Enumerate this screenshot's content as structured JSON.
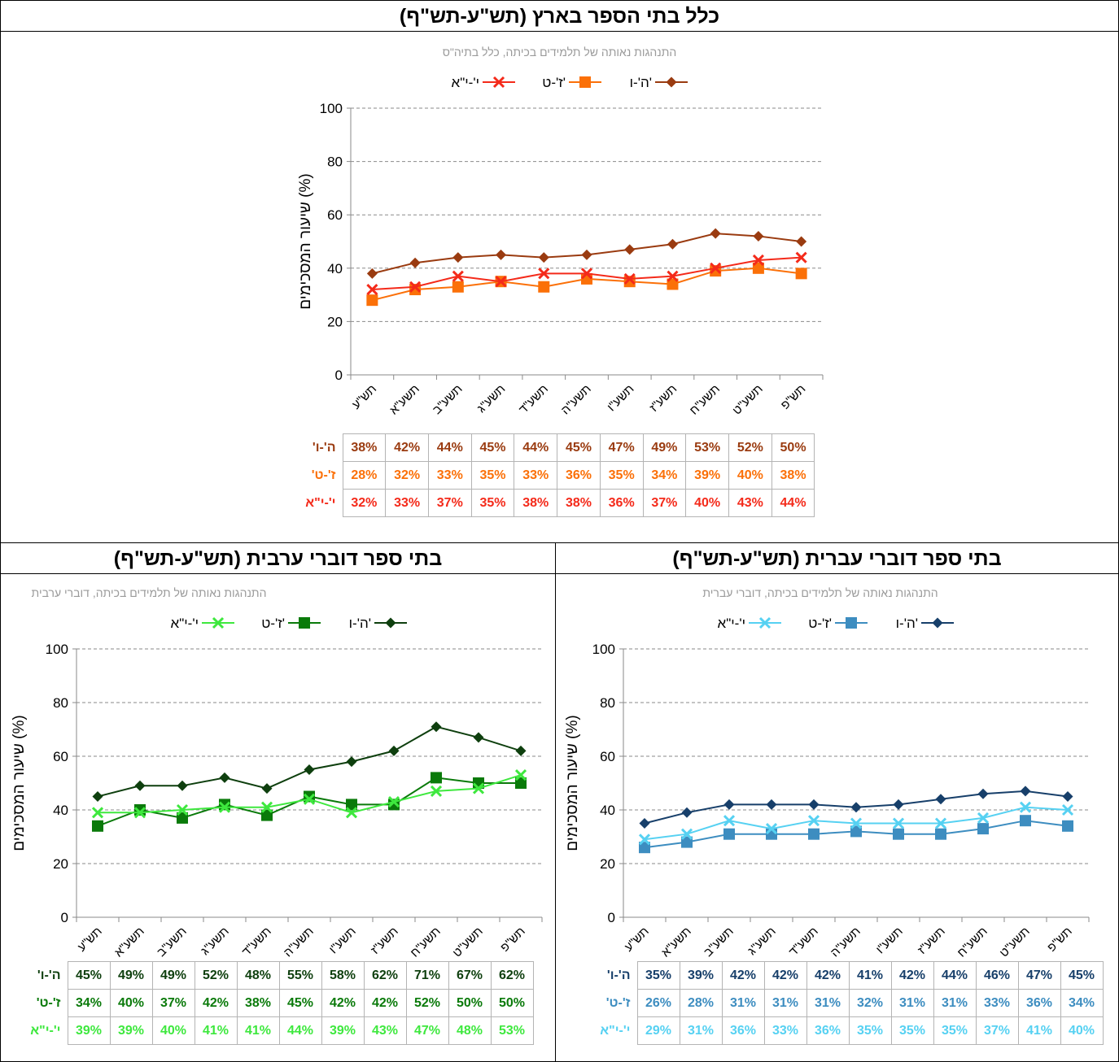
{
  "categories": [
    "תש\"ע",
    "תשע\"א",
    "תשע\"ב",
    "תשע\"ג",
    "תשע\"ד",
    "תשע\"ה",
    "תשע\"ו",
    "תשע\"ז",
    "תשע\"ח",
    "תשע\"ט",
    "תש\"פ"
  ],
  "y_axis": {
    "label": "שיעור המסכימים (%)",
    "ticks": [
      "0",
      "20",
      "40",
      "60",
      "80",
      "100"
    ]
  },
  "chart_data": [
    {
      "type": "line",
      "title": "כלל בתי הספר בארץ (תש\"ע-תש\"ף)",
      "subtitle": "התנהגות נאותה של תלמידים בכיתה, כלל בתיה\"ס",
      "ylabel": "שיעור המסכימים (%)",
      "ylim": [
        0,
        100
      ],
      "grid": true,
      "legend_position": "top",
      "x": [
        "תש\"ע",
        "תשע\"א",
        "תשע\"ב",
        "תשע\"ג",
        "תשע\"ד",
        "תשע\"ה",
        "תשע\"ו",
        "תשע\"ז",
        "תשע\"ח",
        "תשע\"ט",
        "תש\"פ"
      ],
      "series": [
        {
          "name": "ה'-ו'",
          "marker": "diamond",
          "color": "#9a3b10",
          "values": [
            38,
            42,
            44,
            45,
            44,
            45,
            47,
            49,
            53,
            52,
            50
          ],
          "labels": [
            "38%",
            "42%",
            "44%",
            "45%",
            "44%",
            "45%",
            "47%",
            "49%",
            "53%",
            "52%",
            "50%"
          ]
        },
        {
          "name": "ז'-ט'",
          "marker": "square",
          "color": "#fb7008",
          "values": [
            28,
            32,
            33,
            35,
            33,
            36,
            35,
            34,
            39,
            40,
            38
          ],
          "labels": [
            "28%",
            "32%",
            "33%",
            "35%",
            "33%",
            "36%",
            "35%",
            "34%",
            "39%",
            "40%",
            "38%"
          ]
        },
        {
          "name": "י'-י\"א",
          "marker": "x",
          "color": "#f42a1a",
          "values": [
            32,
            33,
            37,
            35,
            38,
            38,
            36,
            37,
            40,
            43,
            44
          ],
          "labels": [
            "32%",
            "33%",
            "37%",
            "35%",
            "38%",
            "38%",
            "36%",
            "37%",
            "40%",
            "43%",
            "44%"
          ]
        }
      ]
    },
    {
      "type": "line",
      "title": "בתי ספר דוברי ערבית (תש\"ע-תש\"ף)",
      "subtitle": "התנהגות נאותה של תלמידים בכיתה, דוברי ערבית",
      "ylabel": "שיעור המסכימים (%)",
      "ylim": [
        0,
        100
      ],
      "grid": true,
      "legend_position": "top",
      "x": [
        "תש\"ע",
        "תשע\"א",
        "תשע\"ב",
        "תשע\"ג",
        "תשע\"ד",
        "תשע\"ה",
        "תשע\"ו",
        "תשע\"ז",
        "תשע\"ח",
        "תשע\"ט",
        "תש\"פ"
      ],
      "series": [
        {
          "name": "ה'-ו'",
          "marker": "diamond",
          "color": "#0e3f0e",
          "values": [
            45,
            49,
            49,
            52,
            48,
            55,
            58,
            62,
            71,
            67,
            62
          ],
          "labels": [
            "45%",
            "49%",
            "49%",
            "52%",
            "48%",
            "55%",
            "58%",
            "62%",
            "71%",
            "67%",
            "62%"
          ]
        },
        {
          "name": "ז'-ט'",
          "marker": "square",
          "color": "#0a7a0a",
          "values": [
            34,
            40,
            37,
            42,
            38,
            45,
            42,
            42,
            52,
            50,
            50
          ],
          "labels": [
            "34%",
            "40%",
            "37%",
            "42%",
            "38%",
            "45%",
            "42%",
            "42%",
            "52%",
            "50%",
            "50%"
          ]
        },
        {
          "name": "י'-י\"א",
          "marker": "x",
          "color": "#3ee83e",
          "values": [
            39,
            39,
            40,
            41,
            41,
            44,
            39,
            43,
            47,
            48,
            53
          ],
          "labels": [
            "39%",
            "39%",
            "40%",
            "41%",
            "41%",
            "44%",
            "39%",
            "43%",
            "47%",
            "48%",
            "53%"
          ]
        }
      ]
    },
    {
      "type": "line",
      "title": "בתי ספר דוברי עברית (תש\"ע-תש\"ף)",
      "subtitle": "התנהגות נאותה של תלמידים בכיתה, דוברי עברית",
      "ylabel": "שיעור המסכימים (%)",
      "ylim": [
        0,
        100
      ],
      "grid": true,
      "legend_position": "top",
      "x": [
        "תש\"ע",
        "תשע\"א",
        "תשע\"ב",
        "תשע\"ג",
        "תשע\"ד",
        "תשע\"ה",
        "תשע\"ו",
        "תשע\"ז",
        "תשע\"ח",
        "תשע\"ט",
        "תש\"פ"
      ],
      "series": [
        {
          "name": "ה'-ו'",
          "marker": "diamond",
          "color": "#173f6a",
          "values": [
            35,
            39,
            42,
            42,
            42,
            41,
            42,
            44,
            46,
            47,
            45
          ],
          "labels": [
            "35%",
            "39%",
            "42%",
            "42%",
            "42%",
            "41%",
            "42%",
            "44%",
            "46%",
            "47%",
            "45%"
          ]
        },
        {
          "name": "ז'-ט'",
          "marker": "square",
          "color": "#3d8dc0",
          "values": [
            26,
            28,
            31,
            31,
            31,
            32,
            31,
            31,
            33,
            36,
            34
          ],
          "labels": [
            "26%",
            "28%",
            "31%",
            "31%",
            "31%",
            "32%",
            "31%",
            "31%",
            "33%",
            "36%",
            "34%"
          ]
        },
        {
          "name": "י'-י\"א",
          "marker": "x",
          "color": "#56d1f2",
          "values": [
            29,
            31,
            36,
            33,
            36,
            35,
            35,
            35,
            37,
            41,
            40
          ],
          "labels": [
            "29%",
            "31%",
            "36%",
            "33%",
            "36%",
            "35%",
            "35%",
            "35%",
            "37%",
            "41%",
            "40%"
          ]
        }
      ]
    }
  ]
}
